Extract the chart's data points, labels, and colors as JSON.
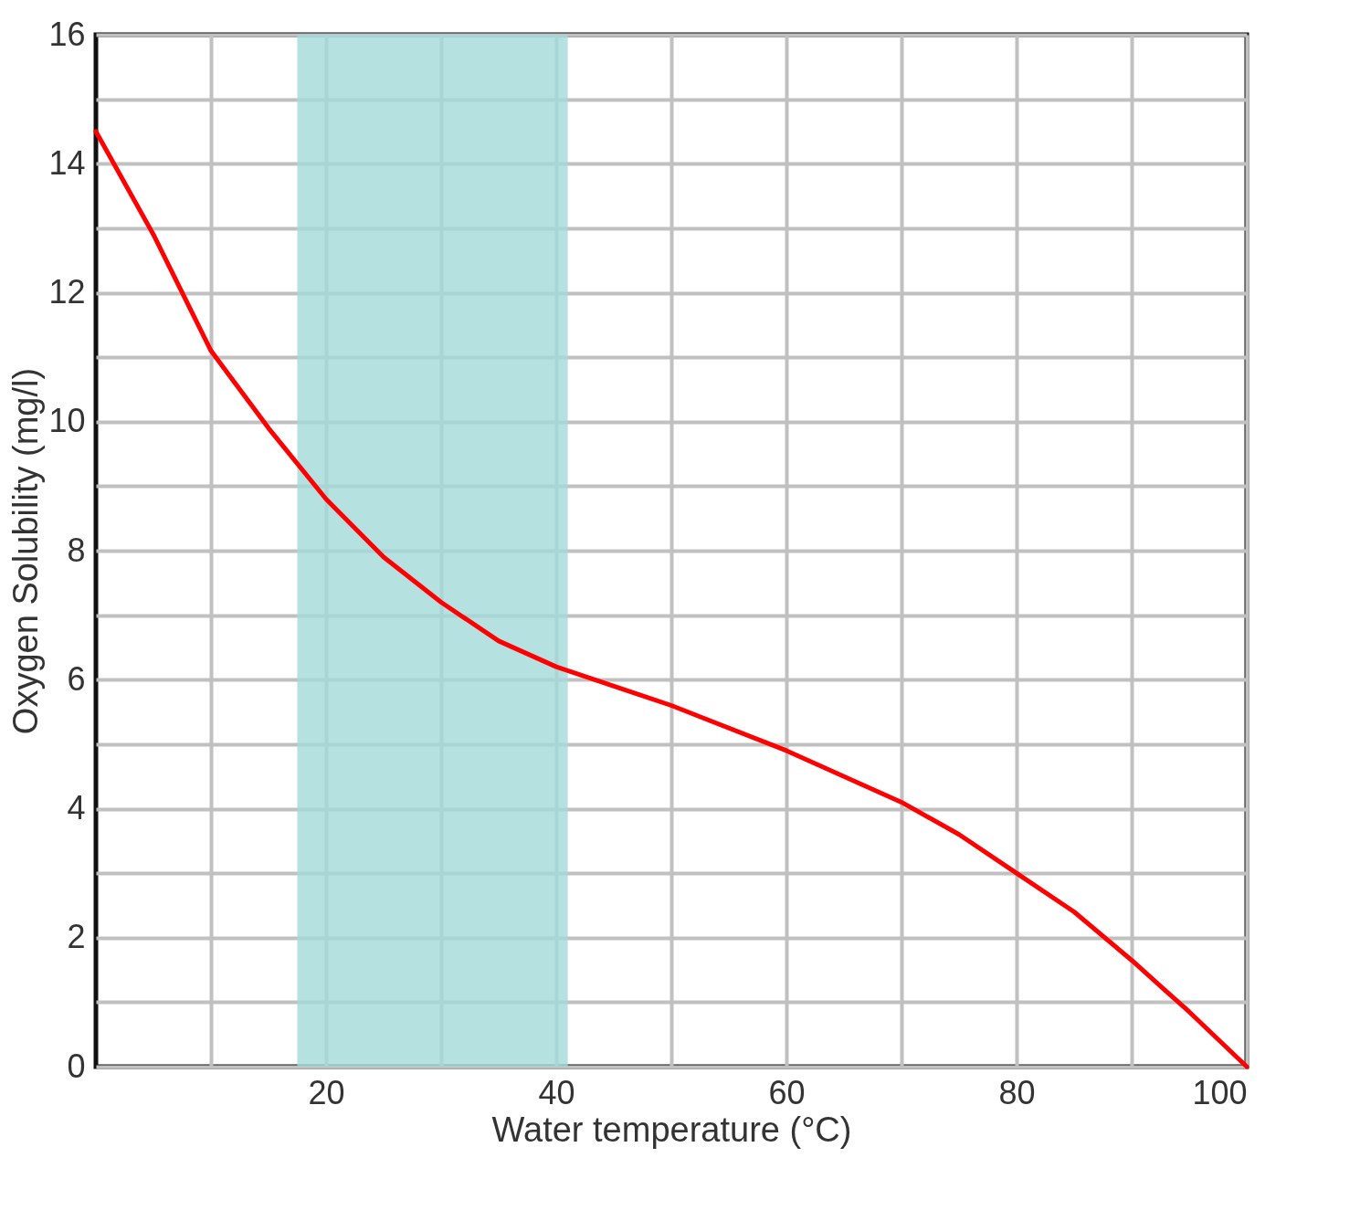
{
  "chart_data": {
    "type": "line",
    "xlabel": "Water temperature (°C)",
    "ylabel": "Oxygen Solubility (mg/l)",
    "x": [
      0,
      5,
      10,
      15,
      20,
      25,
      30,
      35,
      40,
      50,
      60,
      70,
      75,
      80,
      85,
      90,
      95,
      100
    ],
    "series": [
      {
        "color": "#ff0000",
        "values": [
          14.5,
          12.9,
          11.1,
          9.9,
          8.8,
          7.9,
          7.2,
          6.6,
          6.2,
          5.6,
          4.9,
          4.1,
          3.6,
          3.0,
          2.4,
          1.65,
          0.85,
          0
        ]
      }
    ],
    "xlim": [
      0,
      100
    ],
    "ylim": [
      0,
      16
    ],
    "xticks": [
      {
        "value": 10,
        "label": null
      },
      20,
      {
        "value": 30,
        "label": null
      },
      40,
      {
        "value": 50,
        "label": null
      },
      60,
      {
        "value": 70,
        "label": null
      },
      80,
      {
        "value": 90,
        "label": null
      },
      100
    ],
    "yticks": [
      0,
      {
        "value": 1,
        "label": null
      },
      2,
      {
        "value": 3,
        "label": null
      },
      4,
      {
        "value": 5,
        "label": null
      },
      6,
      {
        "value": 7,
        "label": null
      },
      8,
      {
        "value": 9,
        "label": null
      },
      10,
      {
        "value": 11,
        "label": null
      },
      12,
      {
        "value": 13,
        "label": null
      },
      14,
      {
        "value": 15,
        "label": null
      },
      16
    ],
    "bands": [
      {
        "axis": "x",
        "from": 17.5,
        "to": 41,
        "color": "#a2d9d9"
      }
    ],
    "grid": true
  }
}
